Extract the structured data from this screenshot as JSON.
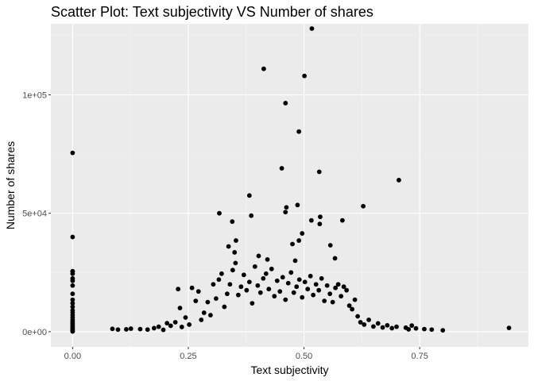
{
  "chart_data": {
    "type": "scatter",
    "title": "Scatter Plot: Text subjectivity VS Number of shares",
    "xlabel": "Text subjectivity",
    "ylabel": "Number of shares",
    "xlim": [
      -0.047,
      0.985
    ],
    "ylim": [
      -6400,
      130000
    ],
    "x_ticks": [
      0,
      0.25,
      0.5,
      0.75
    ],
    "x_tick_labels": [
      "0.00",
      "0.25",
      "0.50",
      "0.75"
    ],
    "y_ticks": [
      0,
      50000,
      100000
    ],
    "y_tick_labels": [
      "0e+00",
      "5e+04",
      "1e+05"
    ],
    "grid": true,
    "legend": "none",
    "point_color": "#000000",
    "panel_background": "#ebebeb",
    "points": [
      [
        0.517,
        128000
      ],
      [
        0.413,
        111000
      ],
      [
        0.501,
        108000
      ],
      [
        0.46,
        96500
      ],
      [
        0.489,
        84500
      ],
      [
        0.0,
        75500
      ],
      [
        0.452,
        69000
      ],
      [
        0.533,
        67500
      ],
      [
        0.705,
        64000
      ],
      [
        0.382,
        57500
      ],
      [
        0.462,
        52500
      ],
      [
        0.486,
        53500
      ],
      [
        0.628,
        53000
      ],
      [
        0.317,
        50000
      ],
      [
        0.46,
        50500
      ],
      [
        0.386,
        49000
      ],
      [
        0.535,
        48500
      ],
      [
        0.345,
        46500
      ],
      [
        0.516,
        47000
      ],
      [
        0.583,
        47000
      ],
      [
        0.534,
        45500
      ],
      [
        0.0,
        40000
      ],
      [
        0.496,
        41500
      ],
      [
        0.353,
        38500
      ],
      [
        0.475,
        37000
      ],
      [
        0.489,
        38500
      ],
      [
        0.557,
        36500
      ],
      [
        0.337,
        36000
      ],
      [
        0.35,
        33500
      ],
      [
        0.402,
        32000
      ],
      [
        0.421,
        30500
      ],
      [
        0.567,
        31000
      ],
      [
        0.481,
        30000
      ],
      [
        0.0,
        25500
      ],
      [
        0.0,
        24500
      ],
      [
        0.0,
        22500
      ],
      [
        0.0,
        21500
      ],
      [
        0.0,
        19500
      ],
      [
        0.0,
        16000
      ],
      [
        0.0,
        13500
      ],
      [
        0.0,
        12000
      ],
      [
        0.0,
        10500
      ],
      [
        0.0,
        9000
      ],
      [
        0.0,
        8000
      ],
      [
        0.0,
        7000
      ],
      [
        0.0,
        6000
      ],
      [
        0.0,
        5000
      ],
      [
        0.0,
        4200
      ],
      [
        0.0,
        3500
      ],
      [
        0.0,
        2800
      ],
      [
        0.0,
        2100
      ],
      [
        0.0,
        1400
      ],
      [
        0.0,
        900
      ],
      [
        0.0,
        400
      ],
      [
        0.0,
        100
      ],
      [
        0.086,
        1200
      ],
      [
        0.098,
        900
      ],
      [
        0.116,
        1000
      ],
      [
        0.126,
        1300
      ],
      [
        0.146,
        1100
      ],
      [
        0.162,
        900
      ],
      [
        0.176,
        1500
      ],
      [
        0.186,
        2100
      ],
      [
        0.196,
        800
      ],
      [
        0.204,
        3600
      ],
      [
        0.212,
        2500
      ],
      [
        0.222,
        4000
      ],
      [
        0.228,
        18000
      ],
      [
        0.232,
        10000
      ],
      [
        0.236,
        2000
      ],
      [
        0.244,
        6000
      ],
      [
        0.252,
        3000
      ],
      [
        0.258,
        18500
      ],
      [
        0.266,
        13000
      ],
      [
        0.272,
        17000
      ],
      [
        0.278,
        5000
      ],
      [
        0.284,
        8000
      ],
      [
        0.292,
        12500
      ],
      [
        0.298,
        7000
      ],
      [
        0.304,
        20000
      ],
      [
        0.31,
        14000
      ],
      [
        0.316,
        22000
      ],
      [
        0.322,
        24500
      ],
      [
        0.328,
        10500
      ],
      [
        0.334,
        16000
      ],
      [
        0.34,
        20000
      ],
      [
        0.346,
        26000
      ],
      [
        0.352,
        29000
      ],
      [
        0.358,
        15500
      ],
      [
        0.364,
        19000
      ],
      [
        0.37,
        24000
      ],
      [
        0.376,
        17500
      ],
      [
        0.382,
        21000
      ],
      [
        0.388,
        12000
      ],
      [
        0.394,
        27500
      ],
      [
        0.4,
        19500
      ],
      [
        0.406,
        16500
      ],
      [
        0.412,
        22500
      ],
      [
        0.418,
        24500
      ],
      [
        0.424,
        18000
      ],
      [
        0.43,
        26500
      ],
      [
        0.436,
        15000
      ],
      [
        0.442,
        21500
      ],
      [
        0.448,
        17000
      ],
      [
        0.454,
        23000
      ],
      [
        0.46,
        13500
      ],
      [
        0.466,
        20500
      ],
      [
        0.472,
        25000
      ],
      [
        0.478,
        16500
      ],
      [
        0.484,
        19000
      ],
      [
        0.49,
        22000
      ],
      [
        0.496,
        14500
      ],
      [
        0.502,
        21000
      ],
      [
        0.508,
        18000
      ],
      [
        0.514,
        23500
      ],
      [
        0.52,
        15500
      ],
      [
        0.526,
        20000
      ],
      [
        0.532,
        17500
      ],
      [
        0.538,
        22500
      ],
      [
        0.544,
        13000
      ],
      [
        0.55,
        19500
      ],
      [
        0.556,
        16000
      ],
      [
        0.562,
        12500
      ],
      [
        0.568,
        18500
      ],
      [
        0.574,
        20000
      ],
      [
        0.58,
        15000
      ],
      [
        0.586,
        19000
      ],
      [
        0.592,
        17500
      ],
      [
        0.598,
        11000
      ],
      [
        0.604,
        9500
      ],
      [
        0.61,
        13500
      ],
      [
        0.616,
        6500
      ],
      [
        0.622,
        4000
      ],
      [
        0.63,
        3000
      ],
      [
        0.64,
        5000
      ],
      [
        0.65,
        2200
      ],
      [
        0.66,
        3500
      ],
      [
        0.67,
        1800
      ],
      [
        0.68,
        2700
      ],
      [
        0.69,
        1500
      ],
      [
        0.7,
        2100
      ],
      [
        0.72,
        1700
      ],
      [
        0.726,
        1000
      ],
      [
        0.733,
        2600
      ],
      [
        0.742,
        1400
      ],
      [
        0.76,
        1100
      ],
      [
        0.776,
        900
      ],
      [
        0.8,
        600
      ],
      [
        0.943,
        1600
      ],
      [
        0.0,
        25500
      ]
    ]
  }
}
